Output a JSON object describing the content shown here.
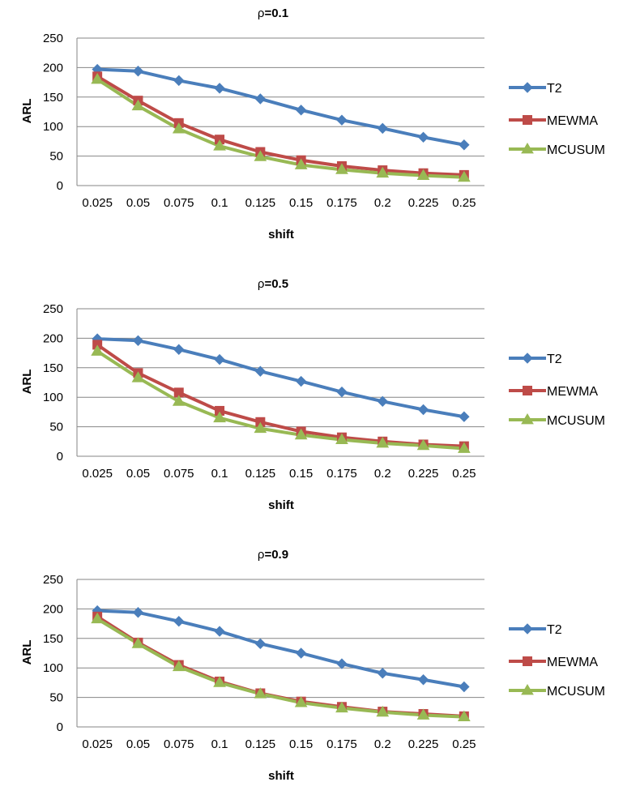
{
  "colors": {
    "T2": "#4a7ebb",
    "MEWMA": "#be4b48",
    "MCUSUM": "#98b954",
    "grid": "#868686",
    "axis": "#868686"
  },
  "chart_data": [
    {
      "type": "line",
      "title_prefix": "ρ",
      "title_value": "=0.1",
      "xlabel": "shift",
      "ylabel": "ARL",
      "ylim": [
        0,
        250
      ],
      "yticks": [
        "0",
        "50",
        "100",
        "150",
        "200",
        "250"
      ],
      "grid": true,
      "legend": "right",
      "categories": [
        "0.025",
        "0.05",
        "0.075",
        "0.1",
        "0.125",
        "0.15",
        "0.175",
        "0.2",
        "0.225",
        "0.25"
      ],
      "series": [
        {
          "name": "T2",
          "marker": "diamond-icon",
          "values": [
            197,
            194,
            178,
            165,
            147,
            128,
            111,
            97,
            82,
            69
          ]
        },
        {
          "name": "MEWMA",
          "marker": "square-icon",
          "values": [
            185,
            144,
            106,
            78,
            57,
            43,
            33,
            26,
            21,
            18
          ]
        },
        {
          "name": "MCUSUM",
          "marker": "triangle-icon",
          "values": [
            180,
            135,
            96,
            67,
            49,
            35,
            27,
            21,
            17,
            14
          ]
        }
      ]
    },
    {
      "type": "line",
      "title_prefix": "ρ",
      "title_value": "=0.5",
      "xlabel": "shift",
      "ylabel": "ARL",
      "ylim": [
        0,
        250
      ],
      "yticks": [
        "0",
        "50",
        "100",
        "150",
        "200",
        "250"
      ],
      "grid": true,
      "legend": "right",
      "categories": [
        "0.025",
        "0.05",
        "0.075",
        "0.1",
        "0.125",
        "0.15",
        "0.175",
        "0.2",
        "0.225",
        "0.25"
      ],
      "series": [
        {
          "name": "T2",
          "marker": "diamond-icon",
          "values": [
            199,
            196,
            181,
            164,
            144,
            127,
            109,
            93,
            79,
            67
          ]
        },
        {
          "name": "MEWMA",
          "marker": "square-icon",
          "values": [
            189,
            141,
            108,
            77,
            58,
            42,
            32,
            25,
            20,
            17
          ]
        },
        {
          "name": "MCUSUM",
          "marker": "triangle-icon",
          "values": [
            178,
            133,
            93,
            65,
            47,
            36,
            28,
            22,
            18,
            13
          ]
        }
      ]
    },
    {
      "type": "line",
      "title_prefix": "ρ",
      "title_value": "=0.9",
      "xlabel": "shift",
      "ylabel": "ARL",
      "ylim": [
        0,
        250
      ],
      "yticks": [
        "0",
        "50",
        "100",
        "150",
        "200",
        "250"
      ],
      "grid": true,
      "legend": "right",
      "categories": [
        "0.025",
        "0.05",
        "0.075",
        "0.1",
        "0.125",
        "0.15",
        "0.175",
        "0.2",
        "0.225",
        "0.25"
      ],
      "series": [
        {
          "name": "T2",
          "marker": "diamond-icon",
          "values": [
            197,
            194,
            179,
            162,
            141,
            125,
            107,
            91,
            80,
            68
          ]
        },
        {
          "name": "MEWMA",
          "marker": "square-icon",
          "values": [
            187,
            143,
            105,
            77,
            57,
            43,
            34,
            26,
            22,
            18
          ]
        },
        {
          "name": "MCUSUM",
          "marker": "triangle-icon",
          "values": [
            183,
            141,
            102,
            75,
            56,
            41,
            32,
            25,
            20,
            17
          ]
        }
      ]
    }
  ]
}
